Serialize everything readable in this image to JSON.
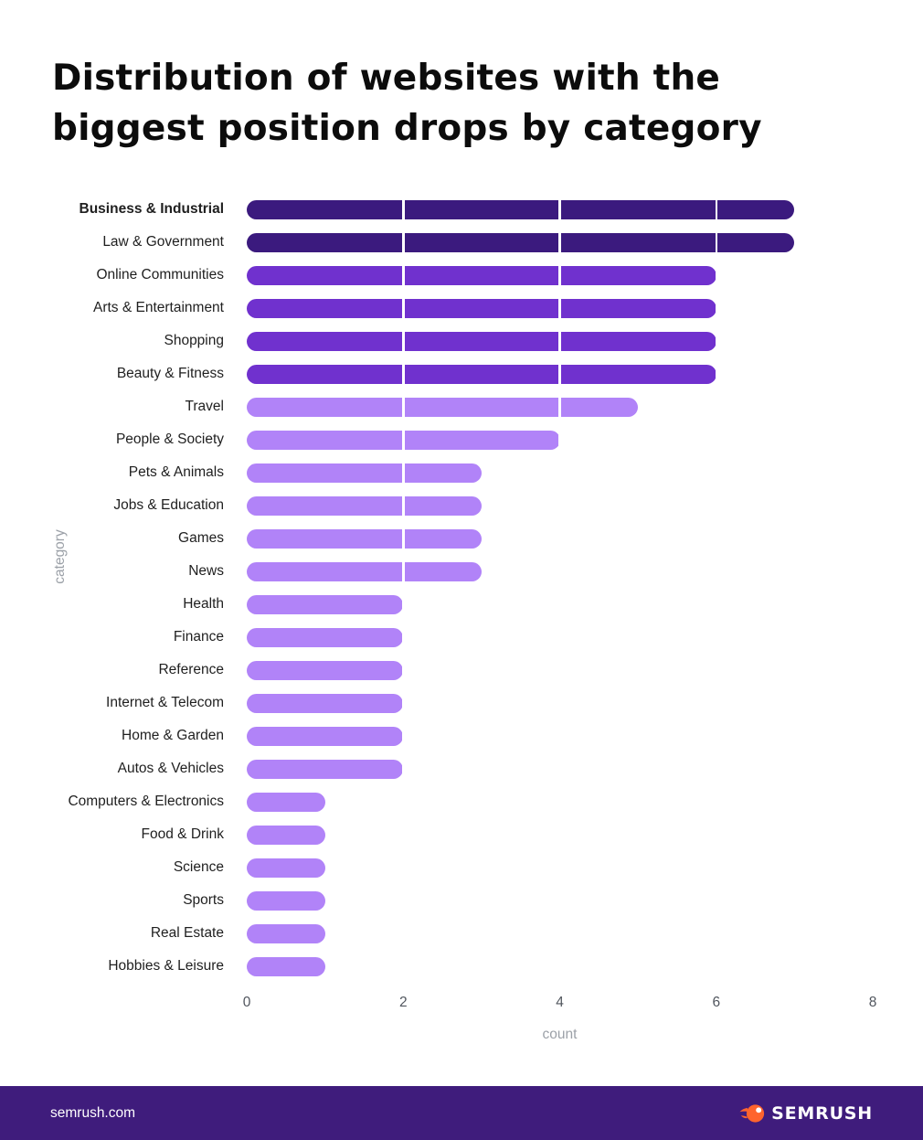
{
  "title": "Distribution of websites with the biggest position drops by category",
  "footer": {
    "site": "semrush.com",
    "brand": "SEMRUSH",
    "background": "#3f1c7c",
    "icon": {
      "name": "semrush-flame-icon",
      "color": "#ff642d"
    }
  },
  "colors": {
    "bar_high": "#3b1a7e",
    "bar_mid": "#7031ce",
    "bar_low": "#b183f8",
    "axis_tick_text": "#51565e",
    "axis_title_text": "#9ca1a8",
    "category_label_text": "#1f1f1f",
    "title_text": "#0c0c0c",
    "gridline": "#ffffff"
  },
  "chart_data": {
    "type": "bar",
    "orientation": "horizontal",
    "title": "Distribution of websites with the biggest position drops by category",
    "xlabel": "count",
    "ylabel": "category",
    "xlim": [
      0,
      8
    ],
    "xticks": [
      0,
      2,
      4,
      6,
      8
    ],
    "grid_ticks": [
      2,
      4,
      6
    ],
    "grid_style": "white vertical lines drawn over bars",
    "legend": "none",
    "emphasized_category": "Business & Industrial",
    "categories": [
      "Business & Industrial",
      "Law & Government",
      "Online Communities",
      "Arts & Entertainment",
      "Shopping",
      "Beauty & Fitness",
      "Travel",
      "People & Society",
      "Pets & Animals",
      "Jobs & Education",
      "Games",
      "News",
      "Health",
      "Finance",
      "Reference",
      "Internet & Telecom",
      "Home & Garden",
      "Autos & Vehicles",
      "Computers & Electronics",
      "Food & Drink",
      "Science",
      "Sports",
      "Real Estate",
      "Hobbies & Leisure"
    ],
    "values": [
      7,
      7,
      6,
      6,
      6,
      6,
      5,
      4,
      3,
      3,
      3,
      3,
      2,
      2,
      2,
      2,
      2,
      2,
      1,
      1,
      1,
      1,
      1,
      1
    ],
    "bar_colors": [
      "#3b1a7e",
      "#3b1a7e",
      "#7031ce",
      "#7031ce",
      "#7031ce",
      "#7031ce",
      "#b183f8",
      "#b183f8",
      "#b183f8",
      "#b183f8",
      "#b183f8",
      "#b183f8",
      "#b183f8",
      "#b183f8",
      "#b183f8",
      "#b183f8",
      "#b183f8",
      "#b183f8",
      "#b183f8",
      "#b183f8",
      "#b183f8",
      "#b183f8",
      "#b183f8",
      "#b183f8"
    ]
  }
}
